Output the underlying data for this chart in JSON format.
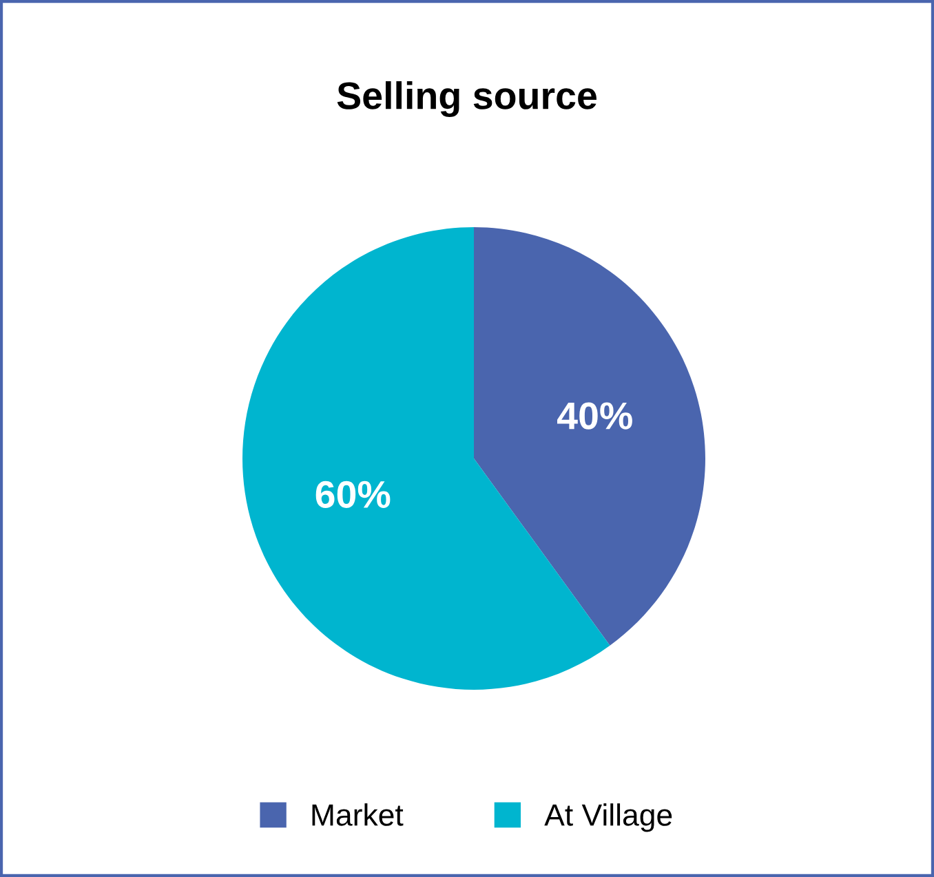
{
  "chart_data": {
    "type": "pie",
    "title": "Selling source",
    "categories": [
      "Market",
      "At Village"
    ],
    "values": [
      40,
      60
    ],
    "colors": [
      "#4a65ae",
      "#00b5cf"
    ],
    "value_labels": [
      "40%",
      "60%"
    ],
    "legend": "bottom"
  }
}
